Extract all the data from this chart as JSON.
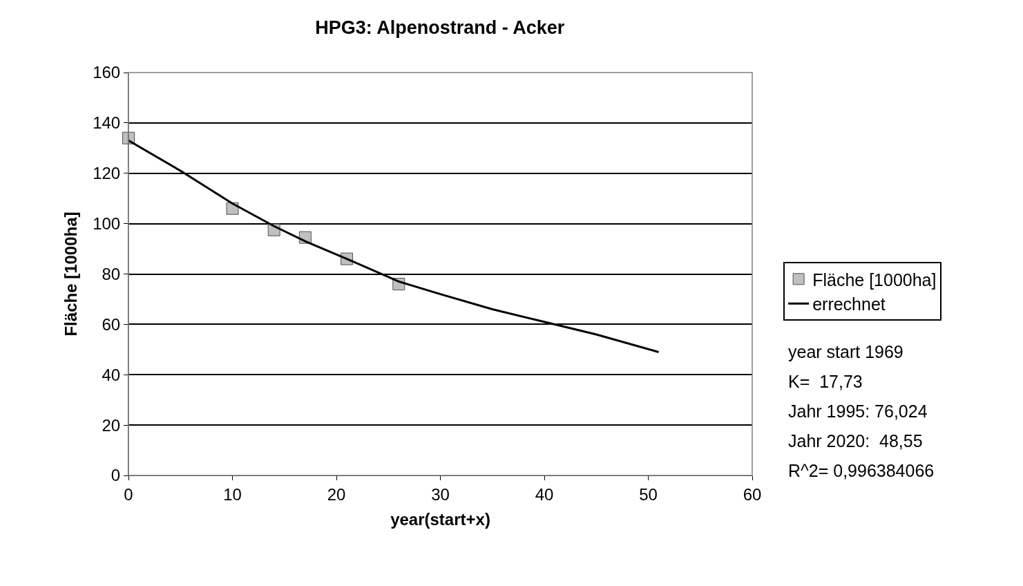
{
  "chart_data": {
    "type": "line",
    "title": "HPG3: Alpenostrand - Acker",
    "xlabel": "year(start+x)",
    "ylabel": "Fläche [1000ha]",
    "xlim": [
      0,
      60
    ],
    "xticks": [
      0,
      10,
      20,
      30,
      40,
      50,
      60
    ],
    "ylim": [
      0,
      160
    ],
    "yticks": [
      0,
      20,
      40,
      60,
      80,
      100,
      120,
      140,
      160
    ],
    "grid": "y",
    "legend": "right",
    "series": [
      {
        "name": "Fläche [1000ha]",
        "type": "scatter",
        "marker": "square",
        "color": "#c0c0c0",
        "x": [
          0,
          10,
          14,
          17,
          21,
          26
        ],
        "values": [
          134,
          106,
          97.5,
          94.5,
          86,
          76
        ]
      },
      {
        "name": "errechnet",
        "marker": "none",
        "color": "#000000",
        "x": [
          0,
          5,
          10,
          14,
          17,
          21,
          26,
          30,
          35,
          40,
          45,
          51
        ],
        "values": [
          133,
          121,
          108,
          99,
          93,
          86,
          77,
          72,
          66,
          61,
          56,
          49
        ]
      }
    ],
    "annotations": [
      "year start 1969",
      "K=  17,73",
      "Jahr 1995: 76,024",
      "Jahr 2020:  48,55",
      "R^2= 0,996384066"
    ]
  }
}
